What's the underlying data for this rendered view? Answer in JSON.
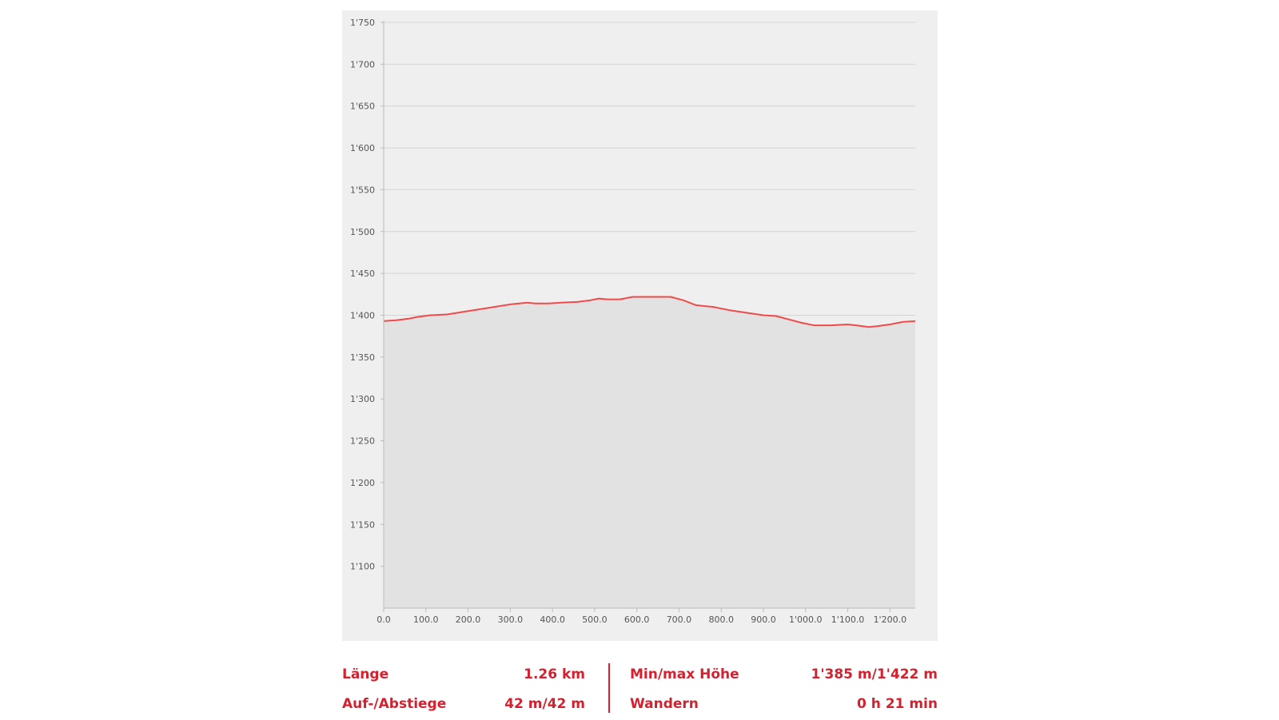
{
  "chart_data": {
    "type": "area",
    "title": "",
    "xlabel": "",
    "ylabel": "",
    "xlim": [
      0,
      1260
    ],
    "ylim": [
      1050,
      1750
    ],
    "x_ticks": [
      {
        "value": 0,
        "label": "0.0"
      },
      {
        "value": 100,
        "label": "100.0"
      },
      {
        "value": 200,
        "label": "200.0"
      },
      {
        "value": 300,
        "label": "300.0"
      },
      {
        "value": 400,
        "label": "400.0"
      },
      {
        "value": 500,
        "label": "500.0"
      },
      {
        "value": 600,
        "label": "600.0"
      },
      {
        "value": 700,
        "label": "700.0"
      },
      {
        "value": 800,
        "label": "800.0"
      },
      {
        "value": 900,
        "label": "900.0"
      },
      {
        "value": 1000,
        "label": "1'000.0"
      },
      {
        "value": 1100,
        "label": "1'100.0"
      },
      {
        "value": 1200,
        "label": "1'200.0"
      }
    ],
    "y_ticks": [
      {
        "value": 1100,
        "label": "1'100"
      },
      {
        "value": 1150,
        "label": "1'150"
      },
      {
        "value": 1200,
        "label": "1'200"
      },
      {
        "value": 1250,
        "label": "1'250"
      },
      {
        "value": 1300,
        "label": "1'300"
      },
      {
        "value": 1350,
        "label": "1'350"
      },
      {
        "value": 1400,
        "label": "1'400"
      },
      {
        "value": 1450,
        "label": "1'450"
      },
      {
        "value": 1500,
        "label": "1'500"
      },
      {
        "value": 1550,
        "label": "1'550"
      },
      {
        "value": 1600,
        "label": "1'600"
      },
      {
        "value": 1650,
        "label": "1'650"
      },
      {
        "value": 1700,
        "label": "1'700"
      },
      {
        "value": 1750,
        "label": "1'750"
      }
    ],
    "grid": true,
    "line_color": "#f04b4b",
    "fill_color": "#e2e2e2",
    "series": [
      {
        "x": [
          0,
          30,
          60,
          80,
          110,
          150,
          200,
          250,
          300,
          340,
          360,
          390,
          420,
          460,
          490,
          510,
          530,
          560,
          590,
          620,
          650,
          680,
          710,
          740,
          780,
          820,
          860,
          900,
          930,
          960,
          990,
          1020,
          1060,
          1100,
          1120,
          1150,
          1170,
          1200,
          1230,
          1260
        ],
        "y": [
          1393,
          1394,
          1396,
          1398,
          1400,
          1401,
          1405,
          1409,
          1413,
          1415,
          1414,
          1414,
          1415,
          1416,
          1418,
          1420,
          1419,
          1419,
          1422,
          1422,
          1422,
          1422,
          1418,
          1412,
          1410,
          1406,
          1403,
          1400,
          1399,
          1395,
          1391,
          1388,
          1388,
          1389,
          1388,
          1386,
          1387,
          1389,
          1392,
          1393
        ]
      }
    ]
  },
  "stats": {
    "length_label": "Länge",
    "length_value": "1.26 km",
    "ascent_label": "Auf-/Abstiege",
    "ascent_value": "42 m/42 m",
    "height_label": "Min/max Höhe",
    "height_value": "1'385 m/1'422 m",
    "time_label": "Wandern",
    "time_value": "0 h 21 min"
  },
  "colors": {
    "stat_text": "#d4212f",
    "panel_background": "#efefef"
  }
}
